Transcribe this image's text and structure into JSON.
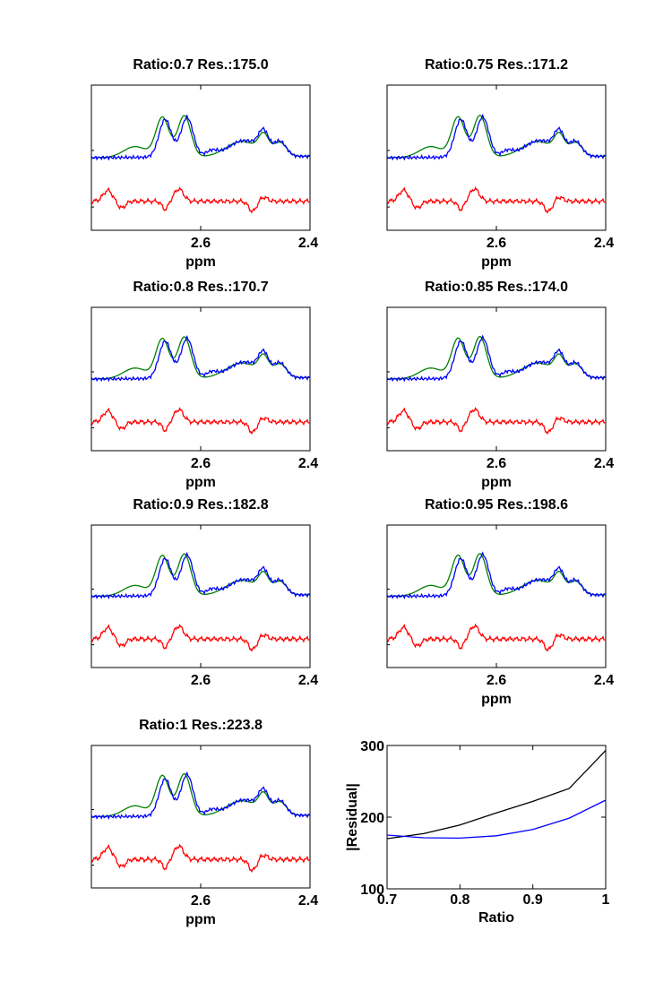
{
  "colors": {
    "measured": "#0000ff",
    "fit": "#008000",
    "residual": "#ff0000",
    "summary_black": "#000000",
    "summary_blue": "#0000ff"
  },
  "chart_data": [
    {
      "type": "line",
      "title": "Ratio:0.7 Res.:175.0",
      "xlabel": "ppm",
      "x_ticks": [
        "2.6",
        "2.4"
      ],
      "xlim": [
        2.8,
        2.4
      ],
      "ratio": 0.7,
      "residual": 175.0,
      "series": [
        "measured spectrum",
        "fitted spectrum",
        "residual"
      ]
    },
    {
      "type": "line",
      "title": "Ratio:0.75 Res.:171.2",
      "xlabel": "ppm",
      "x_ticks": [
        "2.6",
        "2.4"
      ],
      "xlim": [
        2.8,
        2.4
      ],
      "ratio": 0.75,
      "residual": 171.2,
      "series": [
        "measured spectrum",
        "fitted spectrum",
        "residual"
      ]
    },
    {
      "type": "line",
      "title": "Ratio:0.8 Res.:170.7",
      "xlabel": "ppm",
      "x_ticks": [
        "2.6",
        "2.4"
      ],
      "xlim": [
        2.8,
        2.4
      ],
      "ratio": 0.8,
      "residual": 170.7,
      "series": [
        "measured spectrum",
        "fitted spectrum",
        "residual"
      ]
    },
    {
      "type": "line",
      "title": "Ratio:0.85 Res.:174.0",
      "xlabel": "ppm",
      "x_ticks": [
        "2.6",
        "2.4"
      ],
      "xlim": [
        2.8,
        2.4
      ],
      "ratio": 0.85,
      "residual": 174.0,
      "series": [
        "measured spectrum",
        "fitted spectrum",
        "residual"
      ]
    },
    {
      "type": "line",
      "title": "Ratio:0.9 Res.:182.8",
      "xlabel": "",
      "x_ticks": [
        "2.6",
        "2.4"
      ],
      "xlim": [
        2.8,
        2.4
      ],
      "ratio": 0.9,
      "residual": 182.8,
      "series": [
        "measured spectrum",
        "fitted spectrum",
        "residual"
      ]
    },
    {
      "type": "line",
      "title": "Ratio:0.95 Res.:198.6",
      "xlabel": "ppm",
      "x_ticks": [
        "2.6",
        "2.4"
      ],
      "xlim": [
        2.8,
        2.4
      ],
      "ratio": 0.95,
      "residual": 198.6,
      "series": [
        "measured spectrum",
        "fitted spectrum",
        "residual"
      ]
    },
    {
      "type": "line",
      "title": "Ratio:1 Res.:223.8",
      "xlabel": "ppm",
      "x_ticks": [
        "2.6",
        "2.4"
      ],
      "xlim": [
        2.8,
        2.4
      ],
      "ratio": 1.0,
      "residual": 223.8,
      "series": [
        "measured spectrum",
        "fitted spectrum",
        "residual"
      ]
    },
    {
      "type": "line",
      "title": "",
      "xlabel": "Ratio",
      "ylabel": "|Residual|",
      "xlim": [
        0.7,
        1.0
      ],
      "ylim": [
        100,
        300
      ],
      "x_ticks": [
        "0.7",
        "0.8",
        "0.9",
        "1"
      ],
      "y_ticks": [
        "100",
        "200",
        "300"
      ],
      "series": [
        {
          "name": "black",
          "x": [
            0.7,
            0.75,
            0.8,
            0.85,
            0.9,
            0.95,
            1.0
          ],
          "values": [
            170,
            177,
            189,
            206,
            222,
            240,
            293
          ]
        },
        {
          "name": "blue",
          "x": [
            0.7,
            0.75,
            0.8,
            0.85,
            0.9,
            0.95,
            1.0
          ],
          "values": [
            175.0,
            171.2,
            170.7,
            174.0,
            182.8,
            198.6,
            223.8
          ]
        }
      ]
    }
  ]
}
